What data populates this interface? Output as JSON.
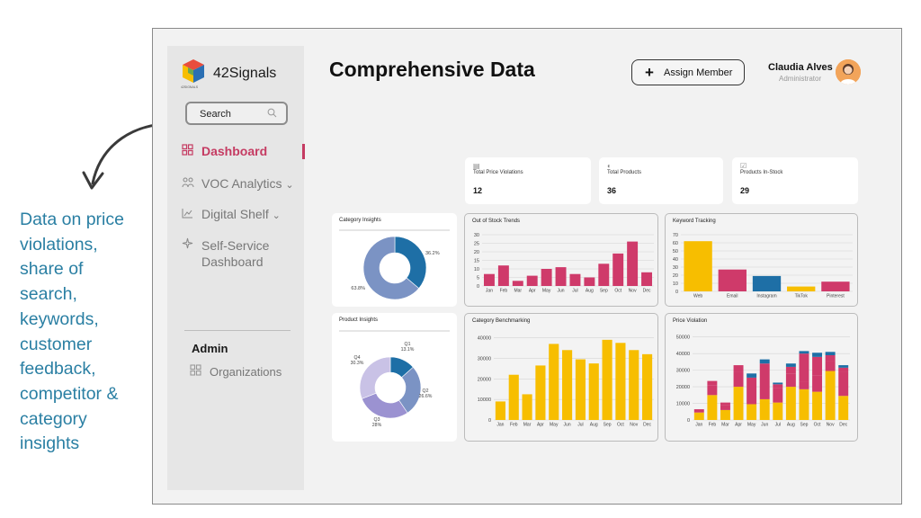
{
  "annotation": {
    "lines": [
      "Data on price",
      "violations,",
      "share of",
      "search,",
      "keywords,",
      "customer",
      "feedback,",
      "competitor &",
      "category",
      "insights"
    ]
  },
  "sidebar": {
    "brand": "42Signals",
    "search_label": "Search",
    "nav": [
      {
        "label": "Dashboard",
        "icon": "grid-icon",
        "active": true
      },
      {
        "label": "VOC Analytics",
        "icon": "people-icon"
      },
      {
        "label": "Digital Shelf",
        "icon": "trend-icon"
      },
      {
        "label": "Self-Service",
        "label2": "Dashboard",
        "icon": "sparkle-icon"
      }
    ],
    "admin_heading": "Admin",
    "admin_item": "Organizations"
  },
  "header": {
    "title": "Comprehensive Data",
    "assign_label": "Assign Member",
    "user_name": "Claudia Alves",
    "user_role": "Administrator"
  },
  "kpis": [
    {
      "label": "Total Price Violations",
      "value": "12"
    },
    {
      "label": "Total Products",
      "value": "36"
    },
    {
      "label": "Products In-Stock",
      "value": "29"
    }
  ],
  "colors": {
    "pink": "#cf3a6a",
    "yellow": "#f7be00",
    "blue": "#1e6fa6",
    "slate": "#7b93c4",
    "lav": "#c9c2e6",
    "purple": "#9b92d1"
  },
  "chart_data": [
    {
      "type": "pie",
      "title": "Category Insights",
      "slices": [
        {
          "label": "36.2%",
          "value": 36.2
        },
        {
          "label": "63.8%",
          "value": 63.8
        }
      ]
    },
    {
      "type": "bar",
      "title": "Out of Stock Trends",
      "categories": [
        "Jan",
        "Feb",
        "Mar",
        "Apr",
        "May",
        "Jun",
        "Jul",
        "Aug",
        "Sep",
        "Oct",
        "Nov",
        "Dec"
      ],
      "values": [
        7,
        12,
        3,
        6,
        10,
        11,
        7,
        5,
        13,
        19,
        26,
        8
      ],
      "yticks": [
        0,
        5,
        10,
        15,
        20,
        25,
        30
      ],
      "ylim": [
        0,
        30
      ]
    },
    {
      "type": "bar",
      "title": "Keyword Tracking",
      "categories": [
        "Web",
        "Email",
        "Instagram",
        "TikTok",
        "Pinterest"
      ],
      "values": [
        62,
        27,
        19,
        6,
        12
      ],
      "yticks": [
        0,
        10,
        20,
        30,
        40,
        50,
        60,
        70
      ],
      "ylim": [
        0,
        70
      ]
    },
    {
      "type": "pie",
      "title": "Product Insights",
      "slices": [
        {
          "label": "Q1",
          "pct": "13.1%",
          "value": 13.1
        },
        {
          "label": "Q2",
          "pct": "26.6%",
          "value": 26.6
        },
        {
          "label": "Q3",
          "pct": "28%",
          "value": 28.0
        },
        {
          "label": "Q4",
          "pct": "30.3%",
          "value": 30.3
        }
      ]
    },
    {
      "type": "bar",
      "title": "Category Benchmarking",
      "categories": [
        "Jan",
        "Feb",
        "Mar",
        "Apr",
        "May",
        "Jun",
        "Jul",
        "Aug",
        "Sep",
        "Oct",
        "Nov",
        "Dec"
      ],
      "values": [
        9000,
        22000,
        12500,
        26500,
        37000,
        34000,
        29500,
        27500,
        39000,
        37500,
        34000,
        32000
      ],
      "yticks": [
        0,
        10000,
        20000,
        30000,
        40000
      ],
      "ylim": [
        0,
        42000
      ]
    },
    {
      "type": "bar",
      "title": "Price Violation",
      "stacked": true,
      "categories": [
        "Jan",
        "Feb",
        "Mar",
        "Apr",
        "May",
        "Jun",
        "Jul",
        "Aug",
        "Sep",
        "Oct",
        "Nov",
        "Dec"
      ],
      "yticks": [
        0,
        10000,
        20000,
        30000,
        40000,
        50000
      ],
      "ylim": [
        0,
        52000
      ],
      "series": [
        {
          "values": [
            4500,
            15000,
            6000,
            20000,
            9500,
            12500,
            10500,
            20000,
            18500,
            17000,
            29500,
            14500
          ]
        },
        {
          "values": [
            1500,
            6000,
            3000,
            9000,
            10000,
            13500,
            8500,
            8000,
            4500,
            10000,
            6000,
            14500
          ]
        },
        {
          "values": [
            500,
            2500,
            1500,
            4000,
            6000,
            8000,
            2500,
            4000,
            17000,
            11000,
            3500,
            2500
          ]
        },
        {
          "values": [
            0,
            0,
            0,
            0,
            2500,
            2500,
            1000,
            2000,
            0,
            2500,
            2000,
            1500
          ]
        },
        {
          "values": [
            0,
            0,
            0,
            0,
            0,
            0,
            0,
            0,
            1500,
            0,
            0,
            0
          ]
        }
      ]
    }
  ]
}
